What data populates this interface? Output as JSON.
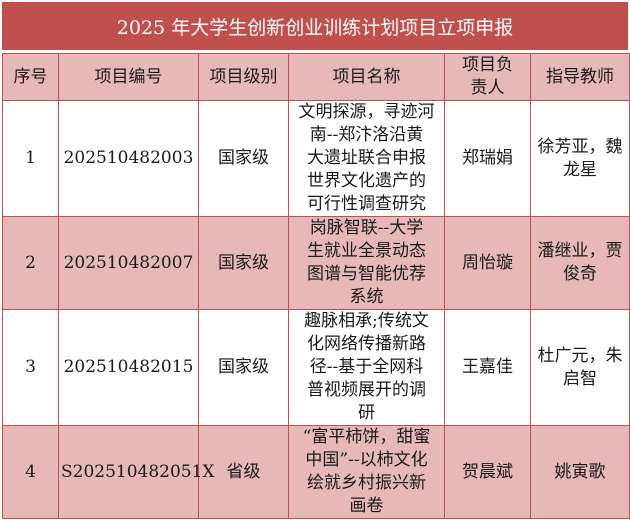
{
  "title": "2025 年大学生创新创业训练计划项目立项申报",
  "colors": {
    "title_bg": "#c0504d",
    "row_alt_bg": "#e6b8b7",
    "border": "#c0504d"
  },
  "headers": [
    "序号",
    "项目编号",
    "项目级别",
    "项目名称",
    "项目负责人",
    "指导教师"
  ],
  "header_lines": {
    "leader": [
      "项目负",
      "责人"
    ]
  },
  "rows": [
    {
      "no": "1",
      "code": "202510482003",
      "level": "国家级",
      "name_lines": [
        "文明探源，寻迹河",
        "南--郑汴洛沿黄",
        "大遗址联合申报",
        "世界文化遗产的",
        "可行性调查研究"
      ],
      "leader": "郑瑞娟",
      "advisor_lines": [
        "徐芳亚，魏",
        "龙星"
      ]
    },
    {
      "no": "2",
      "code": "202510482007",
      "level": "国家级",
      "name_lines": [
        "岗脉智联--大学",
        "生就业全景动态",
        "图谱与智能优荐",
        "系统"
      ],
      "leader": "周怡璇",
      "advisor_lines": [
        "潘继业，贾",
        "俊奇"
      ]
    },
    {
      "no": "3",
      "code": "202510482015",
      "level": "国家级",
      "name_lines": [
        "趣脉相承;传统文",
        "化网络传播新路",
        "径--基于全网科",
        "普视频展开的调",
        "研"
      ],
      "leader": "王嘉佳",
      "advisor_lines": [
        "杜广元，朱",
        "启智"
      ]
    },
    {
      "no": "4",
      "code": "S202510482051X",
      "level": "省级",
      "name_lines": [
        "“富平柿饼，甜蜜",
        "中国”--以柿文化",
        "绘就乡村振兴新",
        "画卷"
      ],
      "leader": "贺晨斌",
      "advisor_lines": [
        "姚寅歌"
      ]
    }
  ]
}
